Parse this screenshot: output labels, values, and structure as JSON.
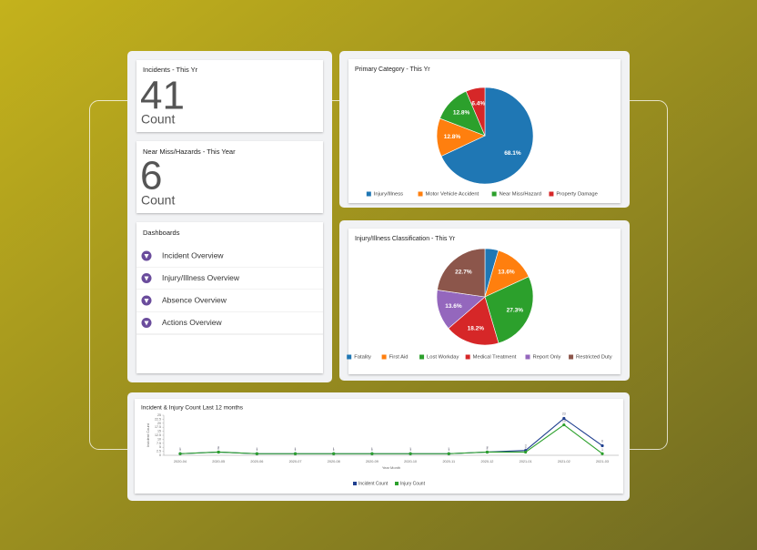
{
  "cards": [
    {
      "title": "Incidents - This Yr",
      "value": 41,
      "unit": "Count"
    },
    {
      "title": "Near Miss/Hazards - This Year",
      "value": 6,
      "unit": "Count"
    }
  ],
  "dashboards": {
    "title": "Dashboards",
    "items": [
      "Incident Overview",
      "Injury/Illness Overview",
      "Absence Overview",
      "Actions Overview"
    ]
  },
  "chart_data": [
    {
      "type": "pie",
      "title": "Primary Category - This Yr",
      "categories": [
        "Injury/Illness",
        "Motor Vehicle Accident",
        "Near Miss/Hazard",
        "Property Damage"
      ],
      "values": [
        68.1,
        12.8,
        12.8,
        6.4
      ],
      "value_labels": [
        "68.1%",
        "12.8%",
        "12.8%",
        "6.4%"
      ],
      "colors": [
        "#1f77b4",
        "#ff7f0e",
        "#2ca02c",
        "#d62728"
      ]
    },
    {
      "type": "pie",
      "title": "Injury/Illness Classification - This Yr",
      "categories": [
        "Fatality",
        "First Aid",
        "Lost Workday",
        "Medical Treatment",
        "Report Only",
        "Restricted Duty"
      ],
      "values": [
        4.5,
        13.6,
        27.3,
        18.2,
        13.6,
        22.7
      ],
      "value_labels": [
        null,
        "13.6%",
        "27.3%",
        "18.2%",
        "13.6%",
        "22.7%"
      ],
      "colors": [
        "#1f77b4",
        "#ff7f0e",
        "#2ca02c",
        "#d62728",
        "#9467bd",
        "#8c564b"
      ]
    },
    {
      "type": "line",
      "title": "Incident & Injury Count Last 12 months",
      "x_label": "Year Month",
      "y_label": "Incident Count",
      "categories": [
        "2020-04",
        "2020-05",
        "2020-06",
        "2020-07",
        "2020-08",
        "2020-09",
        "2020-10",
        "2020-11",
        "2020-12",
        "2021-01",
        "2021-02",
        "2021-03"
      ],
      "series": [
        {
          "name": "Incident Count",
          "color": "#1f3f8f",
          "values": [
            1,
            2,
            1,
            1,
            1,
            1,
            1,
            1,
            2,
            3,
            23,
            6
          ]
        },
        {
          "name": "Injury Count",
          "color": "#2ca02c",
          "values": [
            1,
            2,
            1,
            1,
            1,
            1,
            1,
            1,
            2,
            2,
            19,
            1
          ]
        }
      ],
      "ylim": [
        0,
        25
      ],
      "yticks": [
        0,
        2.5,
        5,
        7.5,
        10,
        12.5,
        15,
        17.5,
        20,
        22.5,
        25
      ]
    }
  ]
}
